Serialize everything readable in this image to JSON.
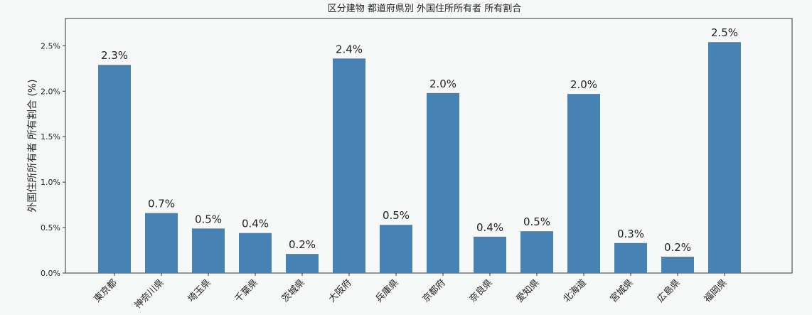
{
  "chart_data": {
    "type": "bar",
    "title": "区分建物 都道府県別 外国住所所有者 所有割合",
    "y_label": "外国住所所有者 所有割合 (%)",
    "categories": [
      "東京都",
      "神奈川県",
      "埼玉県",
      "千葉県",
      "茨城県",
      "大阪府",
      "兵庫県",
      "京都府",
      "奈良県",
      "愛知県",
      "北海道",
      "宮城県",
      "広島県",
      "福岡県"
    ],
    "values": [
      2.29,
      0.66,
      0.49,
      0.44,
      0.21,
      2.36,
      0.53,
      1.98,
      0.4,
      0.46,
      1.97,
      0.33,
      0.18,
      2.54
    ],
    "value_labels": [
      "2.3%",
      "0.7%",
      "0.5%",
      "0.4%",
      "0.2%",
      "2.4%",
      "0.5%",
      "2.0%",
      "0.4%",
      "0.5%",
      "2.0%",
      "0.3%",
      "0.2%",
      "2.5%"
    ],
    "color": "#4682b4",
    "ylim": [
      0,
      2.8
    ],
    "yticks": [
      {
        "value": 0,
        "label": "0.0%"
      },
      {
        "value": 0.5,
        "label": "0.5%"
      },
      {
        "value": 1,
        "label": "1.0%"
      },
      {
        "value": 1.5,
        "label": "1.5%"
      },
      {
        "value": 2,
        "label": "2.0%"
      },
      {
        "value": 2.5,
        "label": "2.5%"
      }
    ]
  }
}
